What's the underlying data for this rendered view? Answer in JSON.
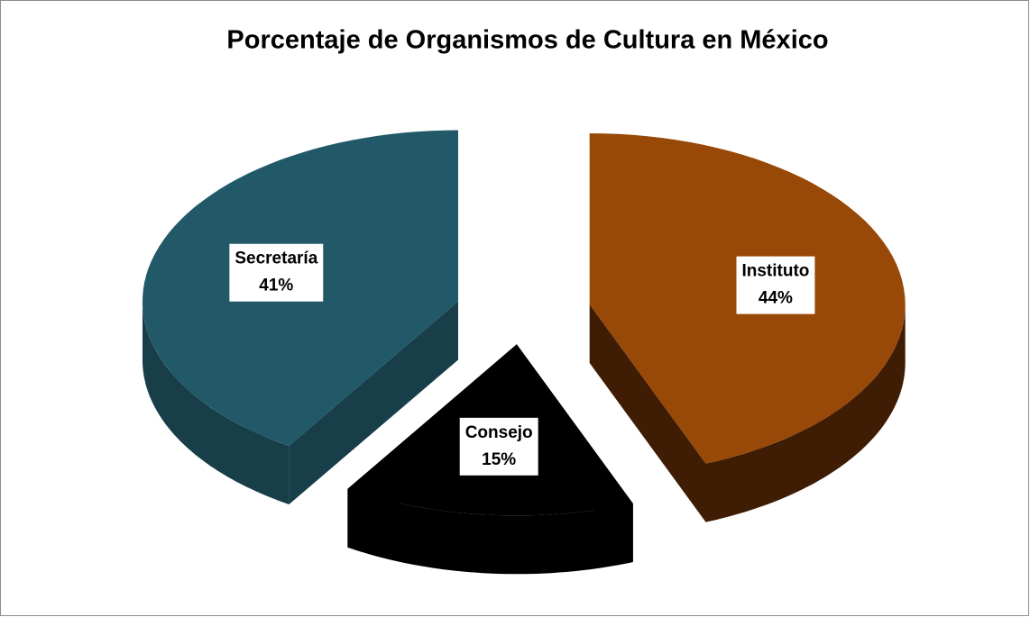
{
  "chart_data": {
    "type": "pie3d",
    "title": "Porcentaje de Organismos de Cultura en México",
    "categories": [
      "Instituto",
      "Consejo",
      "Secretaría"
    ],
    "values": [
      44,
      15,
      41
    ],
    "value_labels": [
      "44%",
      "15%",
      "41%"
    ],
    "colors": [
      "#984807",
      "#000000",
      "#215968"
    ],
    "side_colors": [
      "#3f1d04",
      "#000000",
      "#173e49"
    ],
    "exploded": true
  }
}
